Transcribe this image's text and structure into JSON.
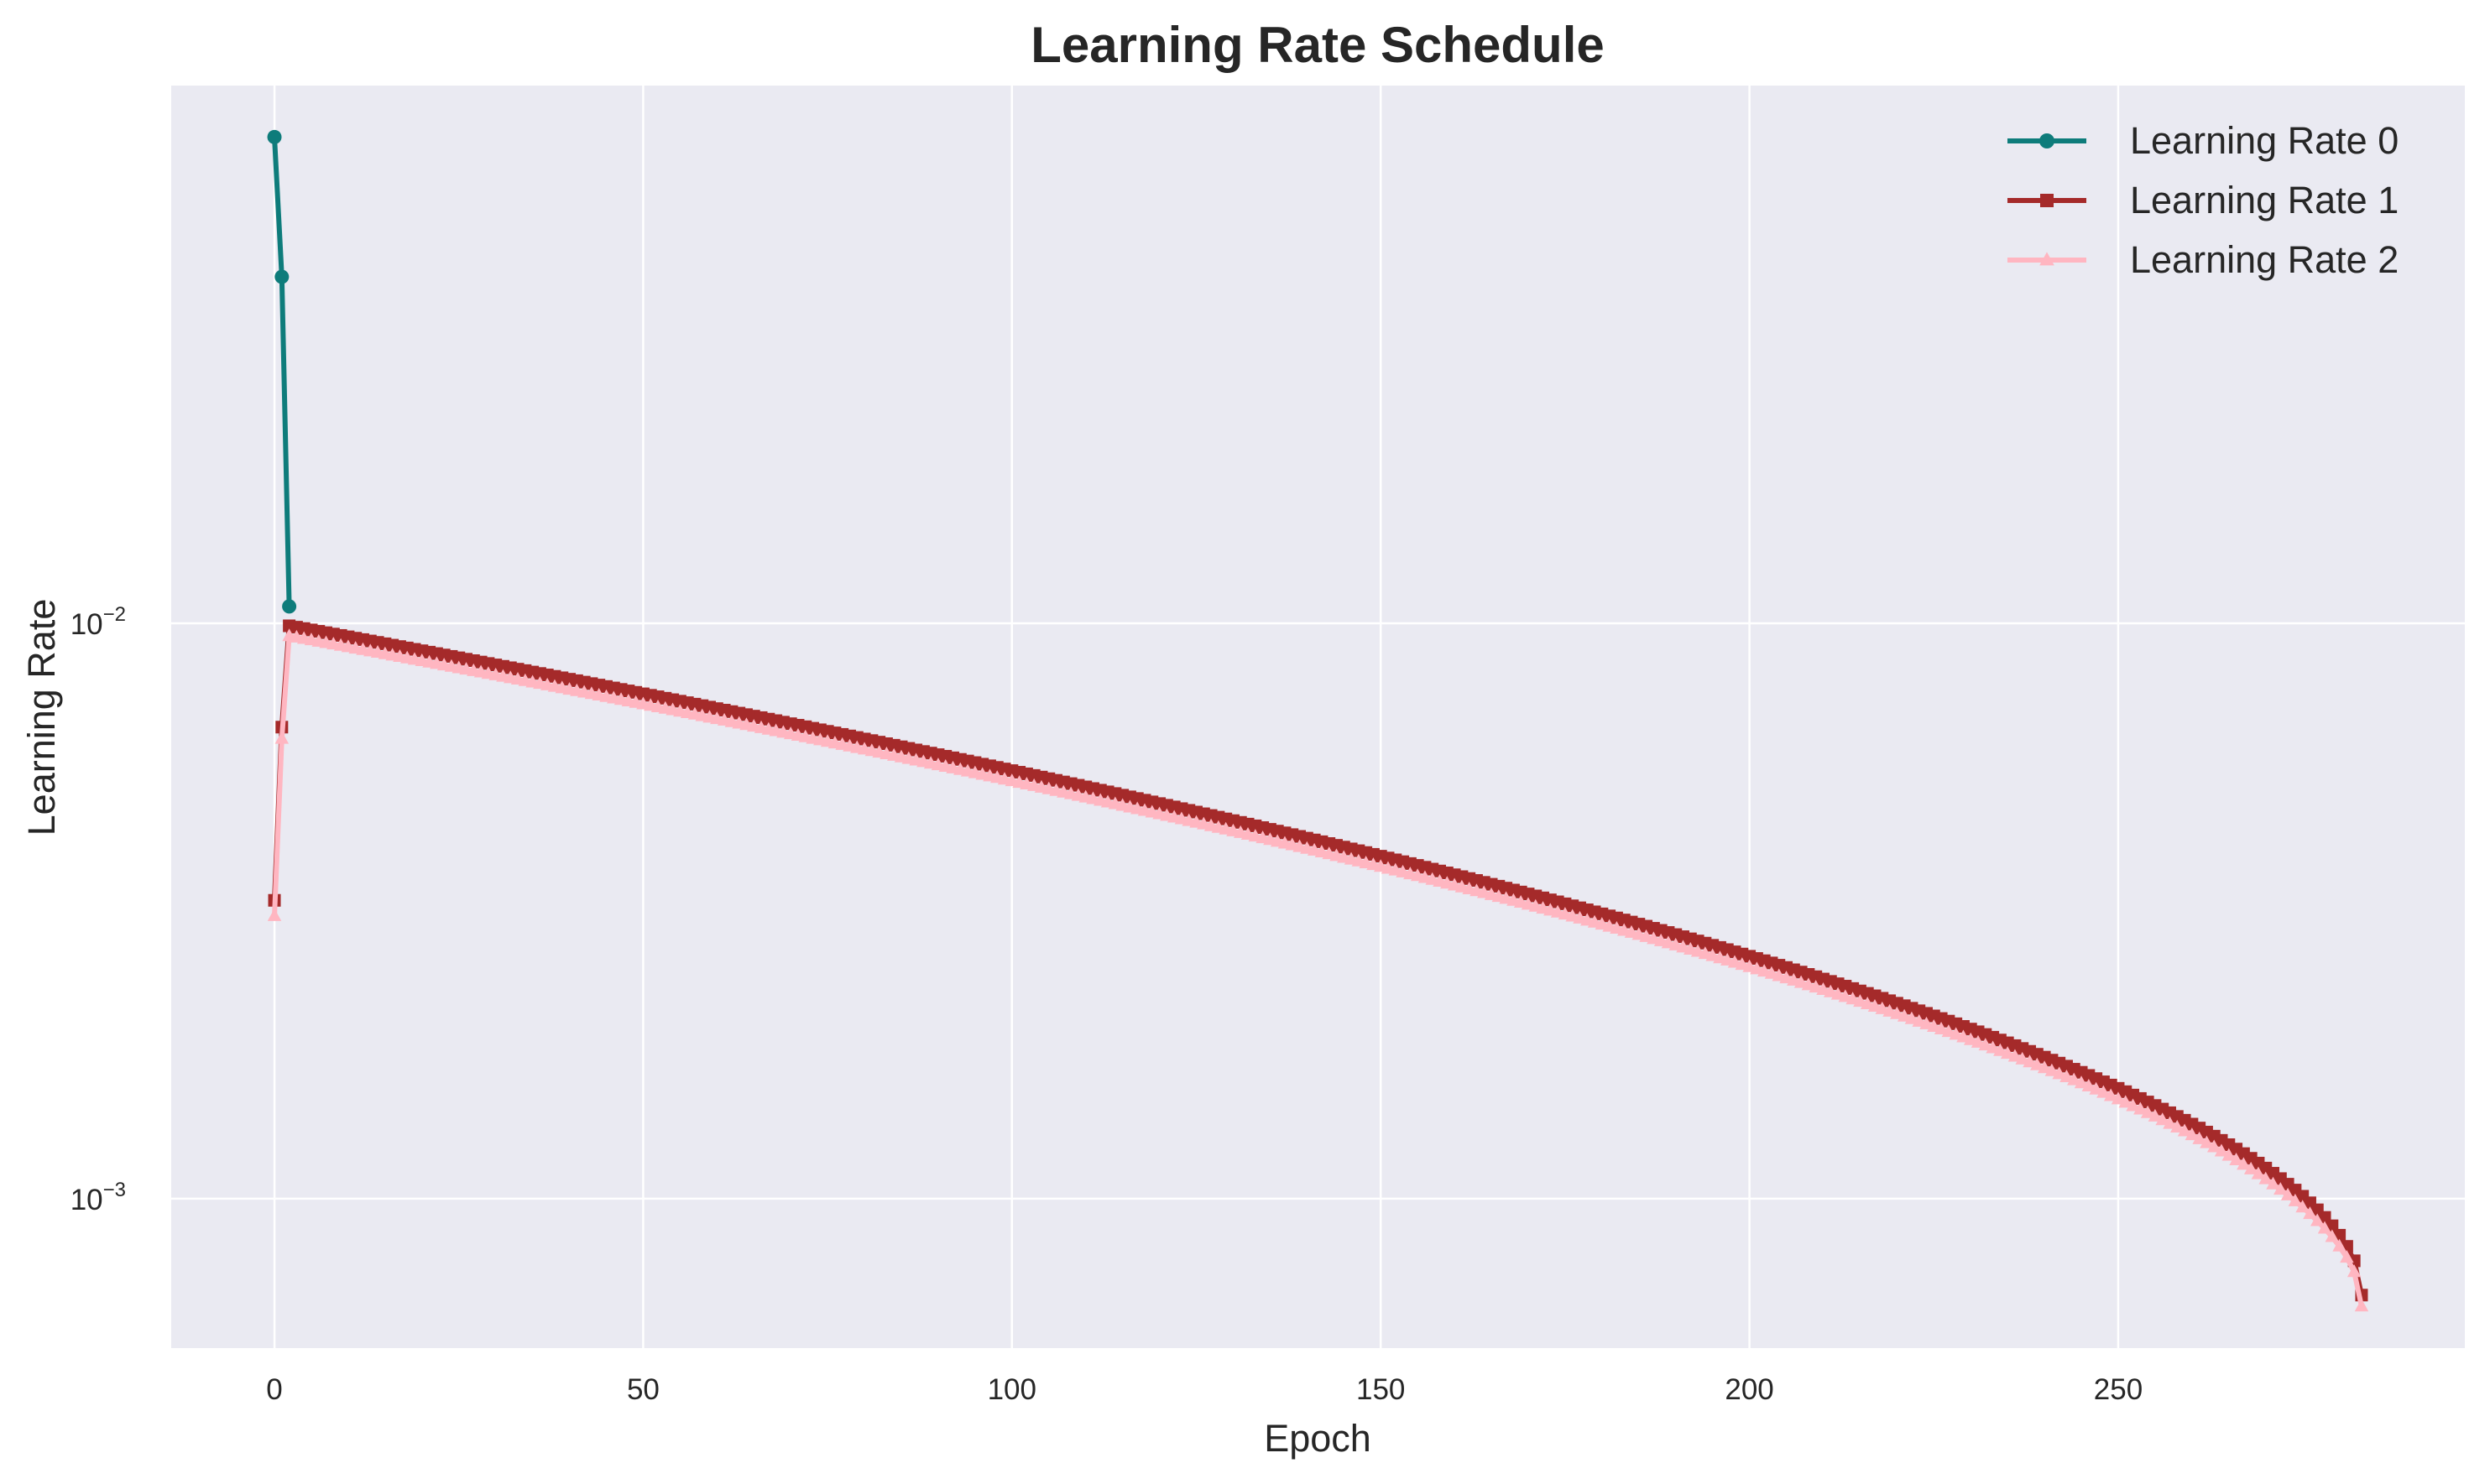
{
  "chart_data": {
    "type": "line",
    "title": "Learning Rate Schedule",
    "xlabel": "Epoch",
    "ylabel": "Learning Rate",
    "xlim": [
      -14,
      297
    ],
    "ylim": [
      0.00055,
      0.086
    ],
    "yscale": "log",
    "xticks": [
      0,
      50,
      100,
      150,
      200,
      250
    ],
    "yticks": [
      {
        "value": 0.001,
        "base": "10",
        "exponent": "−3"
      },
      {
        "value": 0.01,
        "base": "10",
        "exponent": "−2"
      }
    ],
    "grid": true,
    "legend_position": "top-right",
    "background_color": "#eaeaf2",
    "x_range": {
      "start": 0,
      "end": 283,
      "step": 1
    },
    "series": [
      {
        "name": "Learning Rate 0",
        "color": "#0e7c7b",
        "marker": "circle",
        "x": [
          0,
          1,
          2
        ],
        "y": [
          0.07,
          0.04,
          0.0107
        ]
      },
      {
        "name": "Learning Rate 1",
        "color": "#a52a2a",
        "marker": "square",
        "warmup": {
          "x": [
            0,
            1,
            2
          ],
          "y": [
            0.0033,
            0.0066,
            0.0099
          ]
        },
        "decay": {
          "from_x": 2,
          "to_x": 283,
          "start_value": 0.0099,
          "end_value": 0.00068,
          "power": 0.5
        }
      },
      {
        "name": "Learning Rate 2",
        "color": "#ffb6c1",
        "marker": "triangle",
        "warmup": {
          "x": [
            0,
            1,
            2
          ],
          "y": [
            0.0031,
            0.0063,
            0.0095
          ]
        },
        "decay": {
          "from_x": 2,
          "to_x": 283,
          "start_value": 0.0095,
          "end_value": 0.00065,
          "power": 0.5
        }
      }
    ]
  }
}
